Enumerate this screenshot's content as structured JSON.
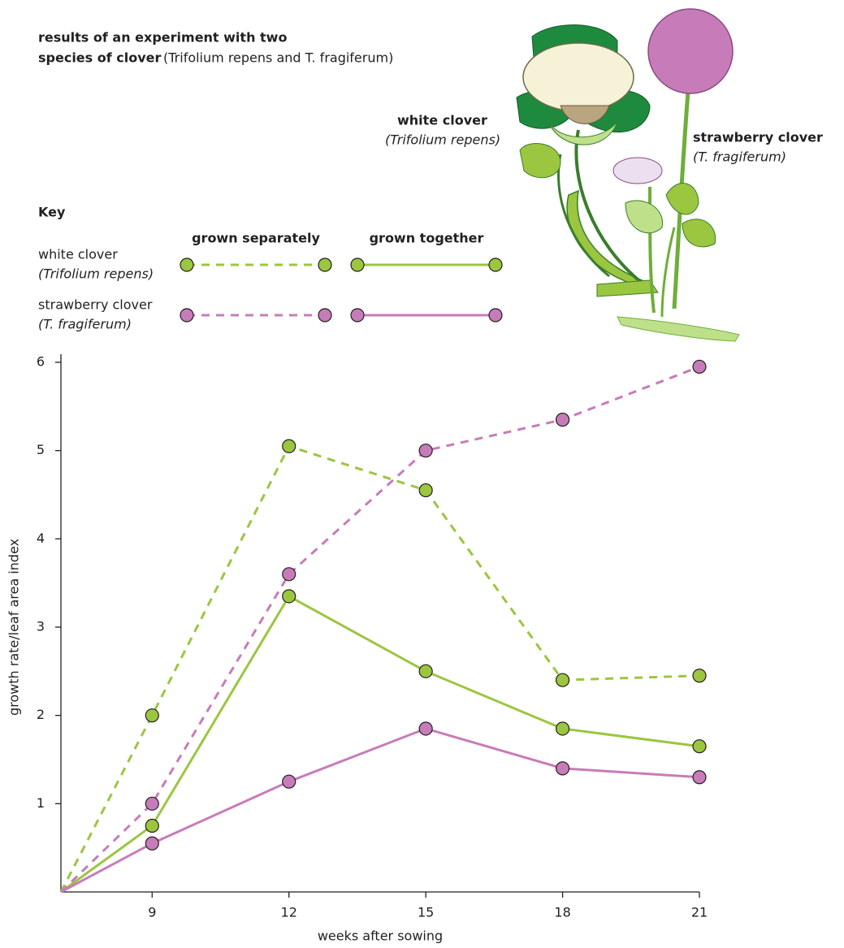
{
  "chart_data": {
    "type": "line",
    "title": [
      "results of an experiment with two",
      "species of clover"
    ],
    "subtitle": "(Trifolium repens and T. fragiferum)",
    "x_label": "weeks after sowing",
    "y_label": "growth rate/leaf area index",
    "x": [
      7,
      9,
      12,
      15,
      18,
      21
    ],
    "xlim": [
      7,
      21
    ],
    "xticks": [
      9,
      12,
      15,
      18,
      21
    ],
    "ylim": [
      0,
      6
    ],
    "yticks": [
      1,
      2,
      3,
      4,
      5,
      6
    ],
    "series": [
      {
        "color": "#9bc640",
        "dashed": true,
        "values": [
          0,
          2.0,
          5.05,
          4.55,
          2.4,
          2.45
        ]
      },
      {
        "color": "#9bc640",
        "dashed": false,
        "values": [
          0,
          0.75,
          3.35,
          2.5,
          1.85,
          1.65
        ]
      },
      {
        "color": "#c77cb9",
        "dashed": true,
        "values": [
          0,
          1.0,
          3.6,
          5.0,
          5.35,
          5.95
        ]
      },
      {
        "color": "#c77cb9",
        "dashed": false,
        "values": [
          0,
          0.55,
          1.25,
          1.85,
          1.4,
          1.3
        ]
      }
    ],
    "legend": {
      "title": "Key",
      "columns": [
        "grown separately",
        "grown together"
      ],
      "rows": [
        {
          "name": "white clover",
          "latin": "(Trifolium repens)"
        },
        {
          "name": "strawberry clover",
          "latin": "(T. fragiferum)"
        }
      ]
    },
    "illustration_labels": [
      {
        "name": "white clover",
        "latin": "(Trifolium repens)"
      },
      {
        "name": "strawberry clover",
        "latin": "(T. fragiferum)"
      }
    ]
  }
}
